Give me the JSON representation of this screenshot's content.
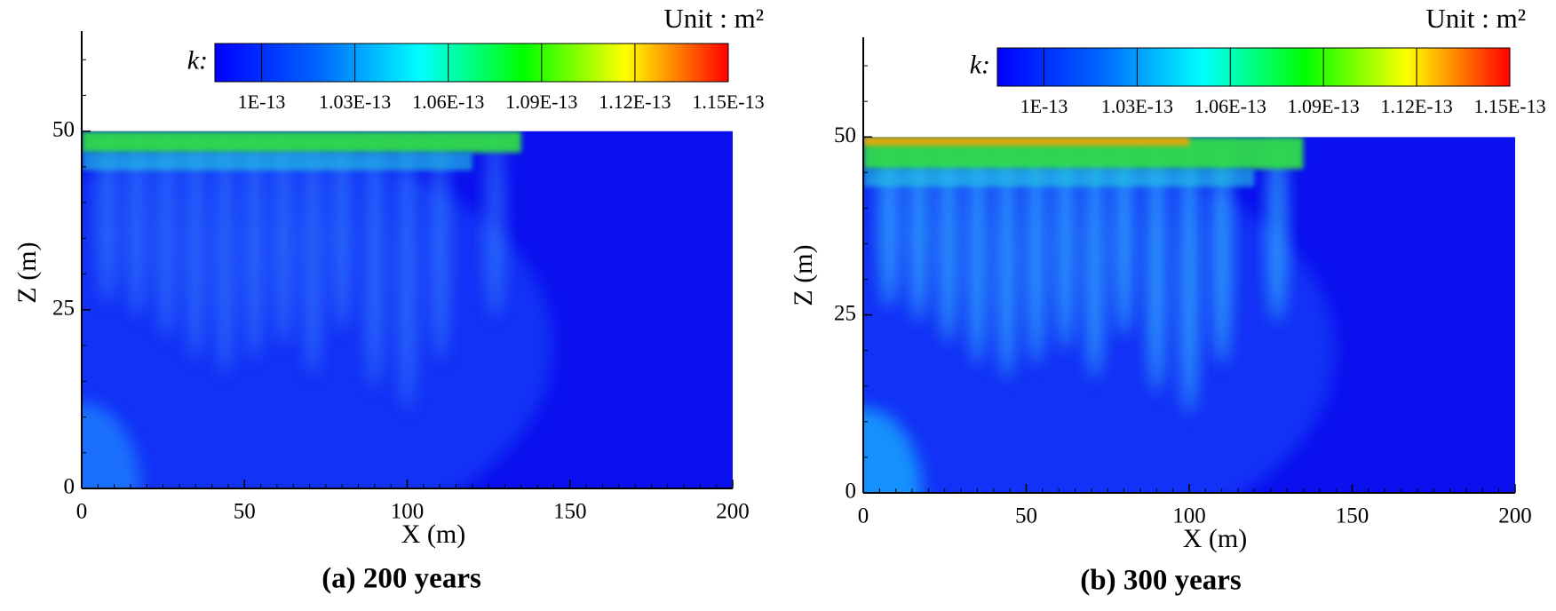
{
  "chart_data": [
    {
      "type": "contour",
      "title": "(a) 200 years",
      "xlabel": "X (m)",
      "ylabel": "Z (m)",
      "xlim": [
        0,
        200
      ],
      "ylim": [
        0,
        64
      ],
      "xticks": [
        0,
        50,
        100,
        150,
        200
      ],
      "yticks": [
        0,
        25,
        50
      ],
      "x_minor_ticks": [
        5,
        10,
        15,
        20,
        25,
        30,
        35,
        40,
        45,
        55,
        60,
        65,
        70,
        75,
        80,
        85,
        90,
        95,
        105,
        110,
        115,
        120,
        125,
        130,
        135,
        140,
        145,
        155,
        160,
        165,
        170,
        175,
        180,
        185,
        190,
        195
      ],
      "y_minor_ticks": [
        5,
        10,
        15,
        20,
        30,
        35,
        40,
        45,
        55,
        60
      ],
      "domain_zlim": [
        0,
        50
      ],
      "colorbar_label": "k:",
      "colorbar_unit": "Unit : m²",
      "clim": [
        9.85e-14,
        1.15e-13
      ],
      "colorbar_ticks": [
        {
          "value": 1e-13,
          "label": "1E-13"
        },
        {
          "value": 1.03e-13,
          "label": "1.03E-13"
        },
        {
          "value": 1.06e-13,
          "label": "1.06E-13"
        },
        {
          "value": 1.09e-13,
          "label": "1.09E-13"
        },
        {
          "value": 1.12e-13,
          "label": "1.12E-13"
        },
        {
          "value": 1.15e-13,
          "label": "1.15E-13"
        }
      ],
      "colormap": [
        "#0000ff",
        "#0064ff",
        "#00ffff",
        "#00ff00",
        "#ffff00",
        "#ff0000"
      ]
    },
    {
      "type": "contour",
      "title": "(b) 300 years",
      "xlabel": "X (m)",
      "ylabel": "Z (m)",
      "xlim": [
        0,
        200
      ],
      "ylim": [
        0,
        64
      ],
      "xticks": [
        0,
        50,
        100,
        150,
        200
      ],
      "yticks": [
        0,
        25,
        50
      ],
      "x_minor_ticks": [
        5,
        10,
        15,
        20,
        25,
        30,
        35,
        40,
        45,
        55,
        60,
        65,
        70,
        75,
        80,
        85,
        90,
        95,
        105,
        110,
        115,
        120,
        125,
        130,
        135,
        140,
        145,
        155,
        160,
        165,
        170,
        175,
        180,
        185,
        190,
        195
      ],
      "y_minor_ticks": [
        5,
        10,
        15,
        20,
        30,
        35,
        40,
        45,
        55,
        60
      ],
      "domain_zlim": [
        0,
        50
      ],
      "colorbar_label": "k:",
      "colorbar_unit": "Unit : m²",
      "clim": [
        9.85e-14,
        1.15e-13
      ],
      "colorbar_ticks": [
        {
          "value": 1e-13,
          "label": "1E-13"
        },
        {
          "value": 1.03e-13,
          "label": "1.03E-13"
        },
        {
          "value": 1.06e-13,
          "label": "1.06E-13"
        },
        {
          "value": 1.09e-13,
          "label": "1.09E-13"
        },
        {
          "value": 1.12e-13,
          "label": "1.12E-13"
        },
        {
          "value": 1.15e-13,
          "label": "1.15E-13"
        }
      ],
      "colormap": [
        "#0000ff",
        "#0064ff",
        "#00ffff",
        "#00ff00",
        "#ffff00",
        "#ff0000"
      ]
    }
  ]
}
